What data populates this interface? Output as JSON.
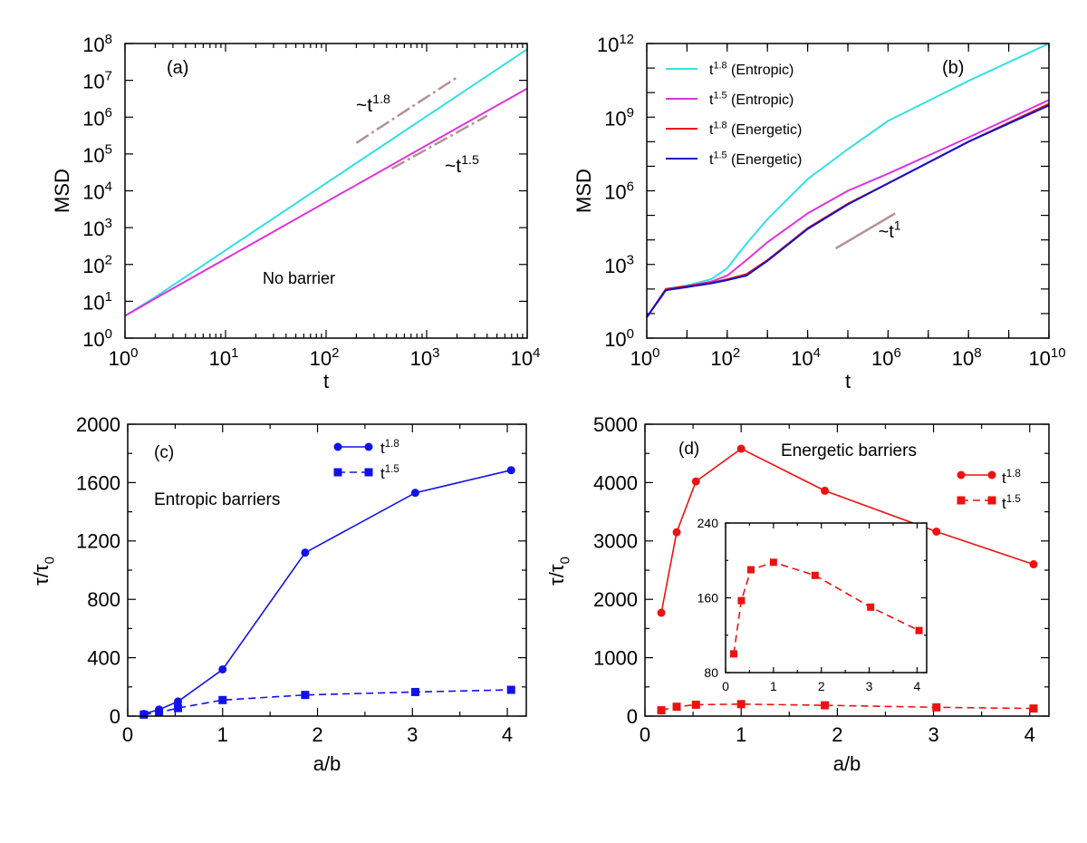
{
  "chart_data": [
    {
      "id": "a",
      "type": "line",
      "panel_label": "(a)",
      "annotation": "No barrier",
      "xlabel": "t",
      "ylabel": "MSD",
      "xscale": "log",
      "yscale": "log",
      "xlim_exp": [
        0,
        4
      ],
      "ylim_exp": [
        0,
        8
      ],
      "x_tick_exponents": [
        "0",
        "1",
        "2",
        "3",
        "4"
      ],
      "y_tick_exponents": [
        "0",
        "1",
        "2",
        "3",
        "4",
        "5",
        "6",
        "7",
        "8"
      ],
      "series": [
        {
          "name": "t^1.8",
          "color": "#33e0e6",
          "x": [
            1,
            2,
            10000
          ],
          "y": [
            4,
            13,
            70000000
          ]
        },
        {
          "name": "t^1.5",
          "color": "#dd33dd",
          "x": [
            1,
            2,
            10000
          ],
          "y": [
            4,
            12,
            6000000
          ]
        }
      ],
      "guides": [
        {
          "label_base": "~t",
          "label_exp": "1.8",
          "color": "#b89090",
          "x": [
            200,
            2000
          ],
          "y": [
            200000,
            12000000
          ]
        },
        {
          "label_base": "~t",
          "label_exp": "1.5",
          "color": "#b89090",
          "x": [
            450,
            4000
          ],
          "y": [
            40000,
            1100000
          ]
        }
      ]
    },
    {
      "id": "b",
      "type": "line",
      "panel_label": "(b)",
      "xlabel": "t",
      "ylabel": "MSD",
      "xscale": "log",
      "yscale": "log",
      "xlim_exp": [
        0,
        10
      ],
      "ylim_exp": [
        0,
        12
      ],
      "x_tick_exponents": [
        "0",
        "2",
        "4",
        "6",
        "8",
        "10"
      ],
      "y_tick_exponents": [
        "0",
        "3",
        "6",
        "9",
        "12"
      ],
      "legend_position": "top-left",
      "series": [
        {
          "name_base": "t",
          "name_exp": "1.8",
          "name_suffix": " (Entropic)",
          "color": "#33e0e6",
          "x": [
            1,
            3,
            10,
            40,
            100,
            300,
            1000,
            10000,
            100000,
            1000000,
            100000000,
            10000000000
          ],
          "y": [
            7,
            100,
            140,
            250,
            700,
            7000,
            70000,
            3000000,
            50000000,
            700000000,
            30000000000,
            1000000000000
          ]
        },
        {
          "name_base": "t",
          "name_exp": "1.5",
          "name_suffix": " (Entropic)",
          "color": "#dd33dd",
          "x": [
            1,
            3,
            10,
            40,
            100,
            300,
            1000,
            10000,
            100000,
            1000000,
            100000000,
            10000000000
          ],
          "y": [
            7,
            100,
            130,
            200,
            350,
            1500,
            8000,
            120000,
            1000000,
            5000000,
            150000000,
            5000000000
          ]
        },
        {
          "name_base": "t",
          "name_exp": "1.8",
          "name_suffix": " (Energetic)",
          "color": "#ee1111",
          "x": [
            1,
            3,
            10,
            40,
            100,
            300,
            1000,
            10000,
            100000,
            1000000,
            100000000,
            10000000000
          ],
          "y": [
            7,
            100,
            130,
            180,
            250,
            400,
            1500,
            30000,
            300000,
            2000000,
            100000000,
            3500000000
          ]
        },
        {
          "name_base": "t",
          "name_exp": "1.5",
          "name_suffix": " (Energetic)",
          "color": "#1111cc",
          "x": [
            1,
            3,
            10,
            40,
            100,
            300,
            1000,
            10000,
            100000,
            1000000,
            100000000,
            10000000000
          ],
          "y": [
            7,
            90,
            120,
            170,
            230,
            350,
            1400,
            28000,
            280000,
            2000000,
            100000000,
            3000000000
          ]
        }
      ],
      "guides": [
        {
          "label_base": "~t",
          "label_exp": "1",
          "color": "#b89090",
          "x": [
            50000,
            1500000
          ],
          "y": [
            4500,
            120000
          ]
        }
      ]
    },
    {
      "id": "c",
      "type": "line",
      "panel_label": "(c)",
      "annotation": "Entropic barriers",
      "xlabel": "a/b",
      "ylabel_base": "τ/τ",
      "ylabel_sub": "0",
      "xlim": [
        0,
        4.2
      ],
      "ylim": [
        0,
        2000
      ],
      "x_ticks": [
        "0",
        "1",
        "2",
        "3",
        "4"
      ],
      "y_ticks": [
        "0",
        "400",
        "800",
        "1200",
        "1600",
        "2000"
      ],
      "legend_position": "top-right",
      "series": [
        {
          "name_base": "t",
          "name_exp": "1.8",
          "color": "#1111ee",
          "marker": "circle",
          "dash": "solid",
          "x": [
            0.17,
            0.33,
            0.53,
            1.0,
            1.87,
            3.03,
            4.04
          ],
          "y": [
            15,
            45,
            100,
            320,
            1120,
            1530,
            1685
          ]
        },
        {
          "name_base": "t",
          "name_exp": "1.5",
          "color": "#1111ee",
          "marker": "square",
          "dash": "dashed",
          "x": [
            0.17,
            0.33,
            0.53,
            1.0,
            1.87,
            3.03,
            4.04
          ],
          "y": [
            10,
            25,
            55,
            110,
            145,
            165,
            180
          ]
        }
      ]
    },
    {
      "id": "d",
      "type": "line",
      "panel_label": "(d)",
      "annotation": "Energetic barriers",
      "xlabel": "a/b",
      "ylabel_base": "τ/τ",
      "ylabel_sub": "0",
      "xlim": [
        0,
        4.2
      ],
      "ylim": [
        0,
        5000
      ],
      "x_ticks": [
        "0",
        "1",
        "2",
        "3",
        "4"
      ],
      "y_ticks": [
        "0",
        "1000",
        "2000",
        "3000",
        "4000",
        "5000"
      ],
      "legend_position": "right",
      "series": [
        {
          "name_base": "t",
          "name_exp": "1.8",
          "color": "#ee1111",
          "marker": "circle",
          "dash": "solid",
          "x": [
            0.17,
            0.33,
            0.53,
            1.0,
            1.87,
            3.03,
            4.04
          ],
          "y": [
            1770,
            3150,
            4020,
            4580,
            3860,
            3160,
            2600
          ]
        },
        {
          "name_base": "t",
          "name_exp": "1.5",
          "color": "#ee1111",
          "marker": "square",
          "dash": "dashed",
          "x": [
            0.17,
            0.33,
            0.53,
            1.0,
            1.87,
            3.03,
            4.04
          ],
          "y": [
            100,
            160,
            195,
            205,
            185,
            150,
            130
          ]
        }
      ],
      "inset": {
        "xlim": [
          0,
          4.2
        ],
        "ylim": [
          80,
          240
        ],
        "x_ticks": [
          "0",
          "1",
          "2",
          "3",
          "4"
        ],
        "y_ticks": [
          "80",
          "160",
          "240"
        ],
        "series": [
          {
            "name": "t^1.5",
            "color": "#ee1111",
            "marker": "square",
            "dash": "dashed",
            "x": [
              0.17,
              0.33,
              0.53,
              1.0,
              1.87,
              3.03,
              4.04
            ],
            "y": [
              100,
              157,
              190,
              198,
              184,
              150,
              125
            ]
          }
        ]
      }
    }
  ]
}
